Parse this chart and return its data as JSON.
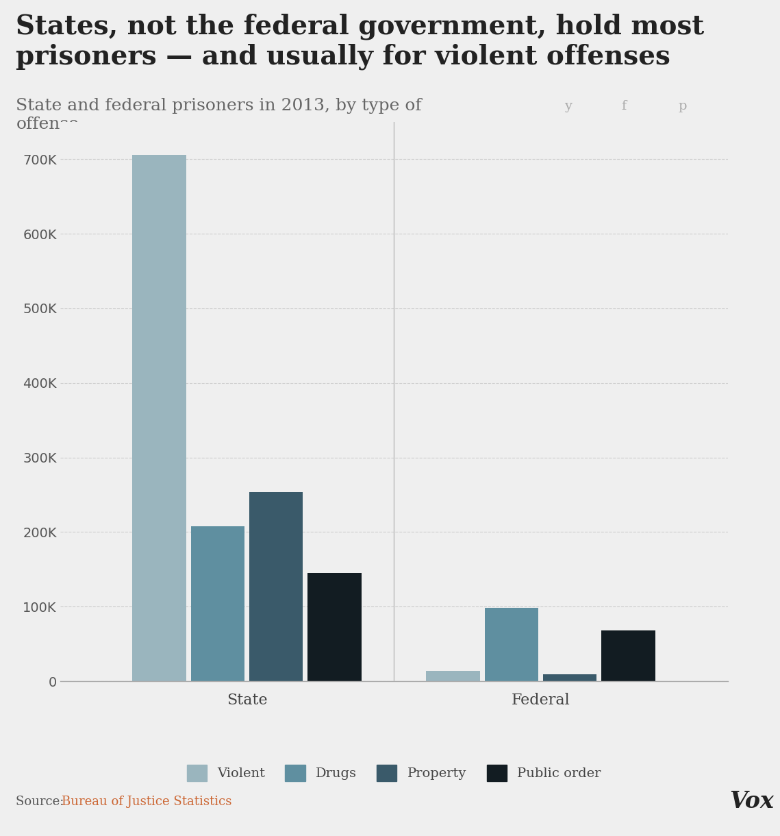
{
  "title": "States, not the federal government, hold most\nprisoners — and usually for violent offenses",
  "subtitle": "State and federal prisoners in 2013, by type of\noffense",
  "categories": [
    "State",
    "Federal"
  ],
  "series": {
    "Violent": [
      706000,
      14000
    ],
    "Drugs": [
      208000,
      98000
    ],
    "Property": [
      254000,
      9000
    ],
    "Public order": [
      145000,
      68000
    ]
  },
  "colors": {
    "Violent": "#9ab5be",
    "Drugs": "#5f8fa0",
    "Property": "#3a5a6a",
    "Public order": "#121c22"
  },
  "ylim": [
    0,
    750000
  ],
  "yticks": [
    0,
    100000,
    200000,
    300000,
    400000,
    500000,
    600000,
    700000
  ],
  "background_color": "#efefef",
  "title_bg_color": "#ffffff",
  "source_prefix": "Source: ",
  "source_link": "Bureau of Justice Statistics",
  "vox_text": "Vox",
  "title_fontsize": 28,
  "subtitle_fontsize": 18,
  "tick_fontsize": 14,
  "legend_fontsize": 14,
  "source_fontsize": 13
}
